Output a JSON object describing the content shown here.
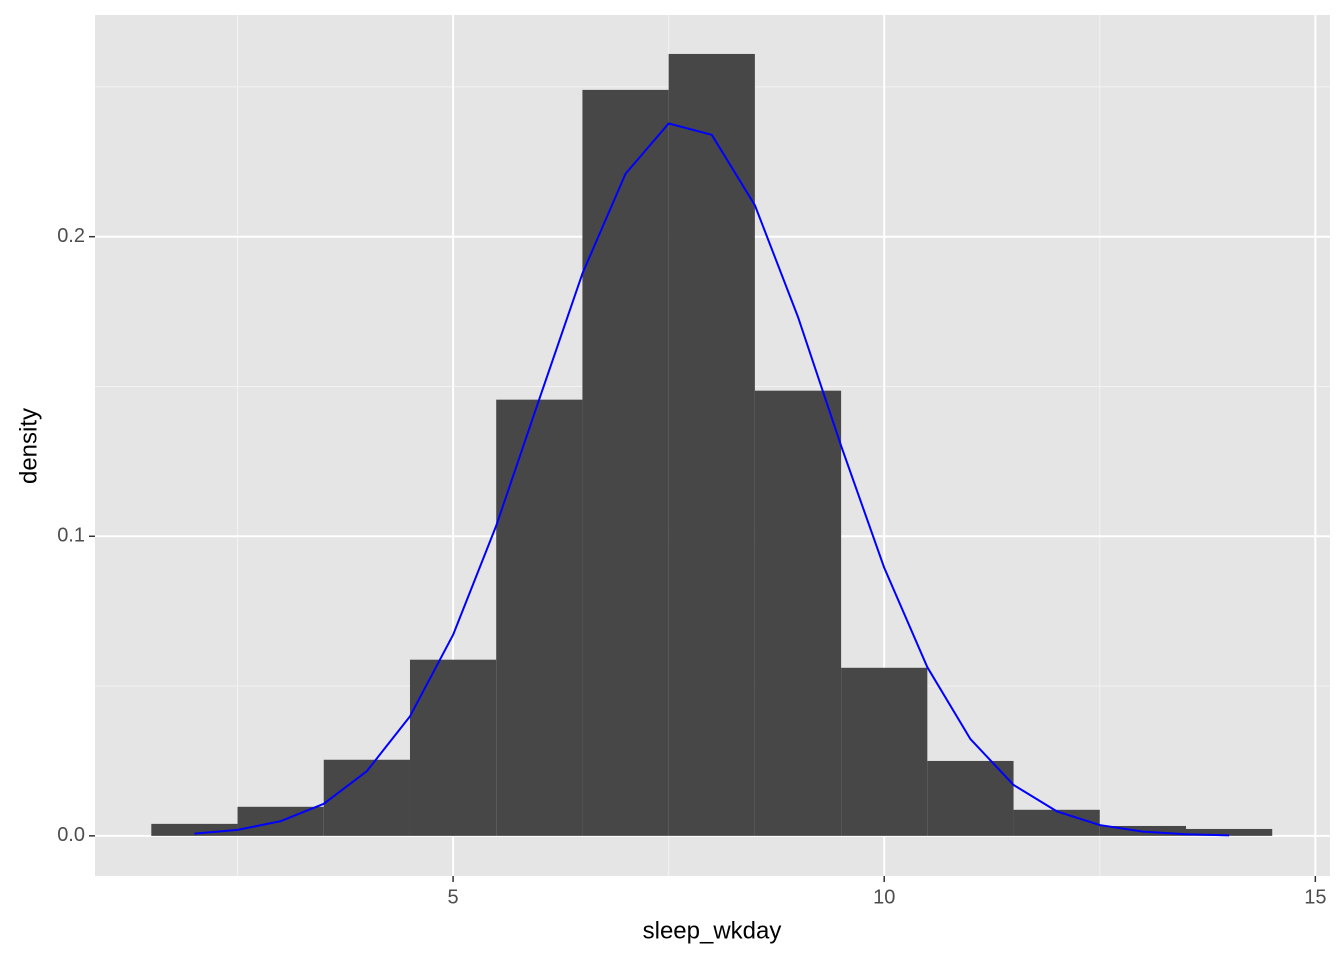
{
  "chart_data": {
    "type": "histogram",
    "x_label": "sleep_wkday",
    "y_label": "density",
    "bins": [
      1.5,
      2.5,
      3.5,
      4.5,
      5.5,
      6.5,
      7.5,
      8.5,
      9.5,
      10.5,
      11.5,
      12.5,
      13.5,
      14.5
    ],
    "values": [
      0.004,
      0.0097,
      0.0254,
      0.0588,
      0.1456,
      0.249,
      0.261,
      0.1486,
      0.0561,
      0.025,
      0.0087,
      0.0033,
      0.0023
    ],
    "color": "#474747",
    "line": {
      "color": "#0000ff",
      "x": [
        2,
        2.5,
        3,
        3.5,
        4,
        4.5,
        5,
        5.5,
        6,
        6.5,
        7,
        7.5,
        8,
        8.5,
        9,
        9.5,
        10,
        10.5,
        11,
        11.5,
        12,
        12.5,
        13,
        13.5,
        14
      ],
      "values": [
        0.00076,
        0.002,
        0.0049,
        0.0107,
        0.0216,
        0.0399,
        0.0671,
        0.1035,
        0.1458,
        0.1877,
        0.221,
        0.2378,
        0.234,
        0.2105,
        0.1732,
        0.1302,
        0.0895,
        0.0563,
        0.0323,
        0.017,
        0.0082,
        0.0036,
        0.0014,
        0.00053,
        0.00018
      ]
    },
    "xlim": [
      0.847,
      15.17
    ],
    "ylim": [
      -0.0134,
      0.274
    ],
    "xticks": [
      5,
      10,
      15
    ],
    "yticks": [
      {
        "value": 0,
        "label": "0.0"
      },
      0.1,
      0.2
    ],
    "x_minor_grid": [
      2.5,
      7.5,
      12.5
    ],
    "y_minor_grid": [
      0.05,
      0.15,
      0.25
    ],
    "grid": true
  }
}
